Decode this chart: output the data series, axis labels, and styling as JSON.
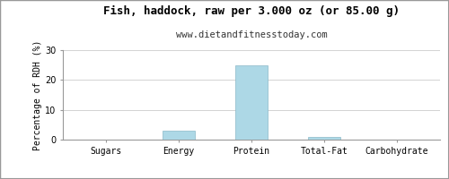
{
  "title": "Fish, haddock, raw per 3.000 oz (or 85.00 g)",
  "subtitle": "www.dietandfitnesstoday.com",
  "categories": [
    "Sugars",
    "Energy",
    "Protein",
    "Total-Fat",
    "Carbohydrate"
  ],
  "values": [
    0,
    3,
    25,
    1,
    0
  ],
  "bar_color": "#add8e6",
  "bar_edgecolor": "#8ab8c8",
  "ylabel": "Percentage of RDH (%)",
  "ylim": [
    0,
    30
  ],
  "yticks": [
    0,
    10,
    20,
    30
  ],
  "bg_color": "#ffffff",
  "grid_color": "#cccccc",
  "border_color": "#999999",
  "title_fontsize": 9,
  "subtitle_fontsize": 7.5,
  "ylabel_fontsize": 7,
  "tick_fontsize": 7
}
